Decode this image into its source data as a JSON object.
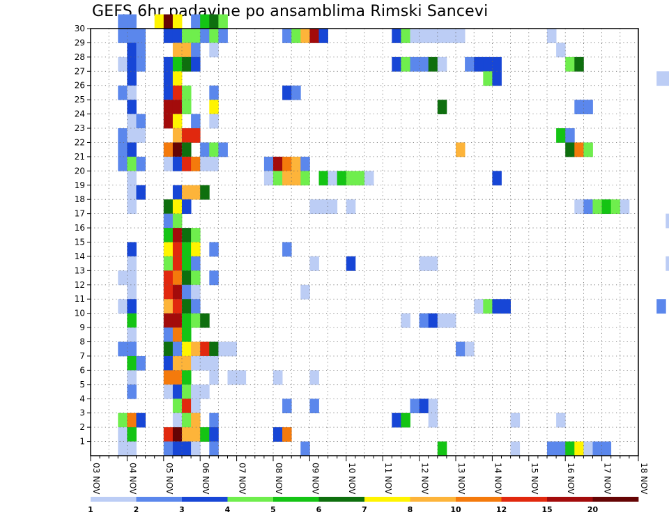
{
  "title": "GEFS 6hr padavine po ansamblima Rimski Sancevi",
  "chart_data": {
    "type": "heatmap",
    "title": "GEFS 6hr padavine po ansamblima Rimski Sancevi",
    "x_tick_labels": [
      "03 NOV",
      "04 NOV",
      "05 NOV",
      "06 NOV",
      "07 NOV",
      "08 NOV",
      "09 NOV",
      "10 NOV",
      "11 NOV",
      "12 NOV",
      "13 NOV",
      "14 NOV",
      "15 NOV",
      "16 NOV",
      "17 NOV",
      "18 NOV"
    ],
    "x_range_days": [
      0,
      15
    ],
    "x_step_days": 0.25,
    "y_tick_labels": [
      "1",
      "2",
      "3",
      "4",
      "5",
      "6",
      "7",
      "8",
      "9",
      "10",
      "11",
      "12",
      "13",
      "14",
      "15",
      "16",
      "17",
      "18",
      "19",
      "20",
      "21",
      "22",
      "23",
      "24",
      "25",
      "26",
      "27",
      "28",
      "29",
      "30"
    ],
    "y_range_members": [
      0,
      30
    ],
    "grid": "dotted",
    "colorbar": {
      "placement": "bottom",
      "colors": [
        "#bccdf5",
        "#5b87ec",
        "#1746d6",
        "#6fee4d",
        "#14c414",
        "#0e6f0e",
        "#fff400",
        "#fdb43a",
        "#f47a0c",
        "#e1280e",
        "#a30b0b",
        "#650404"
      ],
      "tick_labels": [
        "1",
        "2",
        "3",
        "4",
        "5",
        "6",
        "7",
        "8",
        "10",
        "12",
        "15",
        "20"
      ]
    },
    "cells": [
      [
        30,
        0.75,
        1
      ],
      [
        30,
        1,
        1
      ],
      [
        30,
        1.75,
        6
      ],
      [
        30,
        2,
        11
      ],
      [
        30,
        2.25,
        6
      ],
      [
        30,
        2.75,
        1
      ],
      [
        30,
        3,
        4
      ],
      [
        30,
        3.25,
        5
      ],
      [
        30,
        3.5,
        3
      ],
      [
        29,
        0.75,
        1
      ],
      [
        29,
        1,
        1
      ],
      [
        29,
        1.25,
        1
      ],
      [
        29,
        2,
        2
      ],
      [
        29,
        2.25,
        2
      ],
      [
        29,
        2.5,
        3
      ],
      [
        29,
        2.75,
        3
      ],
      [
        29,
        3,
        1
      ],
      [
        29,
        3.25,
        3
      ],
      [
        29,
        3.5,
        1
      ],
      [
        29,
        5.25,
        1
      ],
      [
        29,
        5.5,
        3
      ],
      [
        29,
        5.75,
        7
      ],
      [
        29,
        6,
        10
      ],
      [
        29,
        6.25,
        2
      ],
      [
        29,
        8.25,
        2
      ],
      [
        29,
        8.5,
        3
      ],
      [
        29,
        8.75,
        0
      ],
      [
        29,
        9,
        0
      ],
      [
        29,
        9.25,
        0
      ],
      [
        29,
        9.5,
        0
      ],
      [
        29,
        9.75,
        0
      ],
      [
        29,
        10,
        0
      ],
      [
        29,
        12.5,
        0
      ],
      [
        28,
        1,
        2
      ],
      [
        28,
        1.25,
        1
      ],
      [
        28,
        2.25,
        7
      ],
      [
        28,
        2.5,
        7
      ],
      [
        28,
        2.75,
        1
      ],
      [
        28,
        3.25,
        0
      ],
      [
        28,
        12.75,
        0
      ],
      [
        27,
        0.75,
        0
      ],
      [
        27,
        1,
        2
      ],
      [
        27,
        1.25,
        1
      ],
      [
        27,
        2,
        2
      ],
      [
        27,
        2.25,
        4
      ],
      [
        27,
        2.5,
        5
      ],
      [
        27,
        2.75,
        2
      ],
      [
        27,
        8.25,
        2
      ],
      [
        27,
        8.5,
        3
      ],
      [
        27,
        8.75,
        1
      ],
      [
        27,
        9,
        1
      ],
      [
        27,
        9.25,
        5
      ],
      [
        27,
        9.5,
        0
      ],
      [
        27,
        10.25,
        1
      ],
      [
        27,
        10.5,
        2
      ],
      [
        27,
        10.75,
        2
      ],
      [
        27,
        11,
        2
      ],
      [
        27,
        13,
        3
      ],
      [
        27,
        13.25,
        5
      ],
      [
        26,
        1,
        2
      ],
      [
        26,
        2,
        2
      ],
      [
        26,
        2.25,
        6
      ],
      [
        26,
        10.75,
        3
      ],
      [
        26,
        11,
        2
      ],
      [
        26,
        15.5,
        0
      ],
      [
        26,
        15.75,
        0
      ],
      [
        25,
        0.75,
        1
      ],
      [
        25,
        1,
        0
      ],
      [
        25,
        2,
        2
      ],
      [
        25,
        2.25,
        9
      ],
      [
        25,
        2.5,
        3
      ],
      [
        25,
        3.25,
        1
      ],
      [
        25,
        5.25,
        2
      ],
      [
        25,
        5.5,
        1
      ],
      [
        24,
        1,
        2
      ],
      [
        24,
        2,
        10
      ],
      [
        24,
        2.25,
        10
      ],
      [
        24,
        2.5,
        3
      ],
      [
        24,
        3.25,
        6
      ],
      [
        24,
        9.5,
        5
      ],
      [
        24,
        13.25,
        1
      ],
      [
        24,
        13.5,
        1
      ],
      [
        23,
        1,
        0
      ],
      [
        23,
        1.25,
        1
      ],
      [
        23,
        2,
        10
      ],
      [
        23,
        2.25,
        6
      ],
      [
        23,
        2.75,
        1
      ],
      [
        23,
        3.25,
        0
      ],
      [
        22,
        0.75,
        1
      ],
      [
        22,
        1,
        0
      ],
      [
        22,
        1.25,
        0
      ],
      [
        22,
        2.25,
        7
      ],
      [
        22,
        2.5,
        9
      ],
      [
        22,
        2.75,
        9
      ],
      [
        22,
        12.75,
        4
      ],
      [
        22,
        13,
        1
      ],
      [
        21,
        0.75,
        1
      ],
      [
        21,
        1,
        2
      ],
      [
        21,
        2,
        8
      ],
      [
        21,
        2.25,
        11
      ],
      [
        21,
        2.5,
        5
      ],
      [
        21,
        3,
        1
      ],
      [
        21,
        3.25,
        3
      ],
      [
        21,
        3.5,
        1
      ],
      [
        21,
        10,
        7
      ],
      [
        21,
        13,
        5
      ],
      [
        21,
        13.25,
        8
      ],
      [
        21,
        13.5,
        3
      ],
      [
        20,
        0.75,
        1
      ],
      [
        20,
        1,
        3
      ],
      [
        20,
        1.25,
        1
      ],
      [
        20,
        2,
        0
      ],
      [
        20,
        2.25,
        2
      ],
      [
        20,
        2.5,
        9
      ],
      [
        20,
        2.75,
        8
      ],
      [
        20,
        3,
        0
      ],
      [
        20,
        3.25,
        0
      ],
      [
        20,
        4.75,
        1
      ],
      [
        20,
        5,
        10
      ],
      [
        20,
        5.25,
        8
      ],
      [
        20,
        5.5,
        7
      ],
      [
        20,
        5.75,
        1
      ],
      [
        19,
        1,
        0
      ],
      [
        19,
        4.75,
        0
      ],
      [
        19,
        5,
        3
      ],
      [
        19,
        5.25,
        7
      ],
      [
        19,
        5.5,
        7
      ],
      [
        19,
        5.75,
        3
      ],
      [
        19,
        6.25,
        4
      ],
      [
        19,
        6.5,
        0
      ],
      [
        19,
        6.75,
        4
      ],
      [
        19,
        7,
        3
      ],
      [
        19,
        7.25,
        3
      ],
      [
        19,
        7.5,
        0
      ],
      [
        19,
        11,
        2
      ],
      [
        18,
        1,
        0
      ],
      [
        18,
        1.25,
        2
      ],
      [
        18,
        2.25,
        2
      ],
      [
        18,
        2.5,
        7
      ],
      [
        18,
        2.75,
        7
      ],
      [
        18,
        3,
        5
      ],
      [
        17,
        1,
        0
      ],
      [
        17,
        2,
        5
      ],
      [
        17,
        2.25,
        6
      ],
      [
        17,
        2.5,
        2
      ],
      [
        17,
        6,
        0
      ],
      [
        17,
        6.25,
        0
      ],
      [
        17,
        6.5,
        0
      ],
      [
        17,
        7,
        0
      ],
      [
        17,
        13.25,
        0
      ],
      [
        17,
        13.5,
        1
      ],
      [
        17,
        13.75,
        3
      ],
      [
        17,
        14,
        4
      ],
      [
        17,
        14.25,
        3
      ],
      [
        17,
        14.5,
        0
      ],
      [
        16,
        2,
        1
      ],
      [
        16,
        2.25,
        3
      ],
      [
        16,
        15.75,
        0
      ],
      [
        15,
        2,
        4
      ],
      [
        15,
        2.25,
        10
      ],
      [
        15,
        2.5,
        5
      ],
      [
        15,
        2.75,
        3
      ],
      [
        14,
        1,
        2
      ],
      [
        14,
        2,
        6
      ],
      [
        14,
        2.25,
        9
      ],
      [
        14,
        2.5,
        4
      ],
      [
        14,
        2.75,
        6
      ],
      [
        14,
        3.25,
        1
      ],
      [
        14,
        5.25,
        1
      ],
      [
        13,
        1,
        0
      ],
      [
        13,
        2,
        3
      ],
      [
        13,
        2.25,
        9
      ],
      [
        13,
        2.5,
        4
      ],
      [
        13,
        2.75,
        1
      ],
      [
        13,
        6,
        0
      ],
      [
        13,
        7,
        2
      ],
      [
        13,
        9,
        0
      ],
      [
        13,
        9.25,
        0
      ],
      [
        13,
        15.75,
        0
      ],
      [
        12,
        0.75,
        0
      ],
      [
        12,
        1,
        0
      ],
      [
        12,
        2,
        9
      ],
      [
        12,
        2.25,
        8
      ],
      [
        12,
        2.5,
        5
      ],
      [
        12,
        2.75,
        3
      ],
      [
        12,
        3.25,
        1
      ],
      [
        11,
        1,
        0
      ],
      [
        11,
        2,
        9
      ],
      [
        11,
        2.25,
        10
      ],
      [
        11,
        2.5,
        1
      ],
      [
        11,
        2.75,
        0
      ],
      [
        11,
        5.75,
        0
      ],
      [
        10,
        0.75,
        0
      ],
      [
        10,
        1,
        2
      ],
      [
        10,
        2,
        7
      ],
      [
        10,
        2.25,
        9
      ],
      [
        10,
        2.5,
        5
      ],
      [
        10,
        2.75,
        1
      ],
      [
        10,
        10.5,
        0
      ],
      [
        10,
        10.75,
        3
      ],
      [
        10,
        11,
        2
      ],
      [
        10,
        11.25,
        2
      ],
      [
        10,
        15.5,
        1
      ],
      [
        9,
        1,
        4
      ],
      [
        9,
        2,
        10
      ],
      [
        9,
        2.25,
        10
      ],
      [
        9,
        2.5,
        4
      ],
      [
        9,
        2.75,
        3
      ],
      [
        9,
        3,
        5
      ],
      [
        9,
        8.5,
        0
      ],
      [
        9,
        9,
        1
      ],
      [
        9,
        9.25,
        2
      ],
      [
        9,
        9.5,
        0
      ],
      [
        9,
        9.75,
        0
      ],
      [
        8,
        1,
        0
      ],
      [
        8,
        2,
        1
      ],
      [
        8,
        2.25,
        8
      ],
      [
        8,
        2.5,
        4
      ],
      [
        7,
        0.75,
        1
      ],
      [
        7,
        1,
        1
      ],
      [
        7,
        2,
        5
      ],
      [
        7,
        2.25,
        1
      ],
      [
        7,
        2.5,
        6
      ],
      [
        7,
        2.75,
        7
      ],
      [
        7,
        3,
        9
      ],
      [
        7,
        3.25,
        5
      ],
      [
        7,
        3.5,
        0
      ],
      [
        7,
        3.75,
        0
      ],
      [
        7,
        10,
        1
      ],
      [
        7,
        10.25,
        0
      ],
      [
        6,
        1,
        4
      ],
      [
        6,
        1.25,
        1
      ],
      [
        6,
        2,
        2
      ],
      [
        6,
        2.25,
        7
      ],
      [
        6,
        2.5,
        7
      ],
      [
        6,
        2.75,
        0
      ],
      [
        6,
        3,
        0
      ],
      [
        6,
        3.25,
        0
      ],
      [
        5,
        1,
        0
      ],
      [
        5,
        2,
        8
      ],
      [
        5,
        2.25,
        8
      ],
      [
        5,
        2.5,
        4
      ],
      [
        5,
        3.25,
        0
      ],
      [
        5,
        3.75,
        0
      ],
      [
        5,
        4,
        0
      ],
      [
        5,
        5,
        0
      ],
      [
        5,
        6,
        0
      ],
      [
        4,
        1,
        1
      ],
      [
        4,
        2,
        0
      ],
      [
        4,
        2.25,
        2
      ],
      [
        4,
        2.5,
        3
      ],
      [
        4,
        2.75,
        0
      ],
      [
        4,
        3,
        0
      ],
      [
        3,
        2.25,
        3
      ],
      [
        3,
        2.5,
        9
      ],
      [
        3,
        2.75,
        0
      ],
      [
        3,
        5.25,
        1
      ],
      [
        3,
        6,
        1
      ],
      [
        3,
        8.75,
        1
      ],
      [
        3,
        9,
        2
      ],
      [
        3,
        9.25,
        0
      ],
      [
        2,
        0.75,
        3
      ],
      [
        2,
        1,
        8
      ],
      [
        2,
        1.25,
        2
      ],
      [
        2,
        2.25,
        0
      ],
      [
        2,
        2.5,
        3
      ],
      [
        2,
        2.75,
        7
      ],
      [
        2,
        3.25,
        1
      ],
      [
        2,
        8.25,
        2
      ],
      [
        2,
        8.5,
        4
      ],
      [
        2,
        9.25,
        0
      ],
      [
        2,
        11.5,
        0
      ],
      [
        2,
        12.75,
        0
      ],
      [
        1,
        0.75,
        0
      ],
      [
        1,
        1,
        4
      ],
      [
        1,
        2,
        9
      ],
      [
        1,
        2.25,
        11
      ],
      [
        1,
        2.5,
        7
      ],
      [
        1,
        2.75,
        7
      ],
      [
        1,
        3,
        4
      ],
      [
        1,
        3.25,
        2
      ],
      [
        1,
        5,
        2
      ],
      [
        1,
        5.25,
        8
      ],
      [
        0,
        0.75,
        0
      ],
      [
        0,
        1,
        0
      ],
      [
        0,
        2,
        1
      ],
      [
        0,
        2.25,
        2
      ],
      [
        0,
        2.5,
        2
      ],
      [
        0,
        2.75,
        0
      ],
      [
        0,
        3.25,
        1
      ],
      [
        0,
        5.75,
        1
      ],
      [
        0,
        9.5,
        4
      ],
      [
        0,
        11.5,
        0
      ],
      [
        0,
        12.5,
        1
      ],
      [
        0,
        12.75,
        1
      ],
      [
        0,
        13,
        4
      ],
      [
        0,
        13.25,
        6
      ],
      [
        0,
        13.5,
        0
      ],
      [
        0,
        13.75,
        1
      ],
      [
        0,
        14,
        1
      ]
    ]
  }
}
